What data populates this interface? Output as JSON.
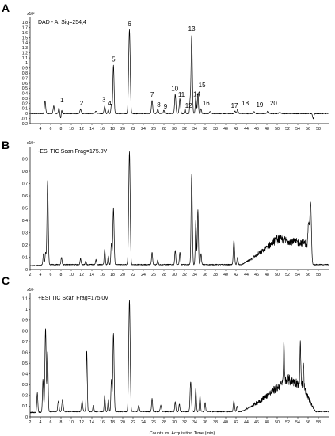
{
  "figure": {
    "xlabel": "Counts vs. Acquisition Time (min)"
  },
  "chart_data": [
    {
      "type": "line",
      "panel": "A",
      "title": "DAD - A:  Sig=254,4",
      "multiplier": "x10²",
      "xlim": [
        2,
        60
      ],
      "ylim": [
        -0.2,
        1.9
      ],
      "xticks": [
        4,
        6,
        8,
        10,
        12,
        14,
        16,
        18,
        20,
        22,
        24,
        26,
        28,
        30,
        32,
        34,
        36,
        38,
        40,
        42,
        44,
        46,
        48,
        50,
        52,
        54,
        56,
        58
      ],
      "yticks": [
        -0.2,
        -0.1,
        0,
        0.1,
        0.2,
        0.3,
        0.4,
        0.5,
        0.6,
        0.7,
        0.8,
        0.9,
        1,
        1.1,
        1.2,
        1.3,
        1.4,
        1.5,
        1.6,
        1.7,
        1.8
      ],
      "baseline": 0,
      "peaks": [
        {
          "t": 4.9,
          "h": 0.25,
          "w": 0.12
        },
        {
          "t": 6.6,
          "h": 0.15,
          "w": 0.12
        },
        {
          "t": 7.6,
          "h": 0.12,
          "w": 0.1
        },
        {
          "t": 8.1,
          "h": 0.14,
          "w": 0.1
        },
        {
          "t": 11.8,
          "h": 0.09,
          "w": 0.12
        },
        {
          "t": 14.8,
          "h": 0.05,
          "w": 0.15
        },
        {
          "t": 16.5,
          "h": 0.15,
          "w": 0.12
        },
        {
          "t": 17.2,
          "h": 0.08,
          "w": 0.1
        },
        {
          "t": 17.8,
          "h": 0.18,
          "w": 0.1
        },
        {
          "t": 18.2,
          "h": 0.96,
          "w": 0.12
        },
        {
          "t": 21.3,
          "h": 1.66,
          "w": 0.15
        },
        {
          "t": 25.7,
          "h": 0.26,
          "w": 0.12
        },
        {
          "t": 26.8,
          "h": 0.09,
          "w": 0.12
        },
        {
          "t": 28.0,
          "h": 0.06,
          "w": 0.12
        },
        {
          "t": 30.2,
          "h": 0.38,
          "w": 0.12
        },
        {
          "t": 31.1,
          "h": 0.3,
          "w": 0.12
        },
        {
          "t": 32.1,
          "h": 0.1,
          "w": 0.1
        },
        {
          "t": 33.1,
          "h": 0.25,
          "w": 0.1
        },
        {
          "t": 33.4,
          "h": 1.55,
          "w": 0.12
        },
        {
          "t": 34.2,
          "h": 0.36,
          "w": 0.1
        },
        {
          "t": 34.6,
          "h": 0.4,
          "w": 0.1
        },
        {
          "t": 35.2,
          "h": 0.1,
          "w": 0.1
        },
        {
          "t": 37.0,
          "h": 0.04,
          "w": 0.15
        },
        {
          "t": 41.8,
          "h": 0.05,
          "w": 0.12
        },
        {
          "t": 42.3,
          "h": 0.08,
          "w": 0.12
        },
        {
          "t": 45.5,
          "h": 0.04,
          "w": 0.15
        },
        {
          "t": 48.2,
          "h": 0.05,
          "w": 0.15
        },
        {
          "t": 50.5,
          "h": 0.02,
          "w": 0.2
        }
      ],
      "dips": [
        {
          "t": 8.0,
          "d": 0.14
        },
        {
          "t": 57.0,
          "d": 0.1
        }
      ],
      "noise": 0.008,
      "annotations": [
        {
          "label": "1",
          "x": 8.2,
          "y": 0.19
        },
        {
          "label": "2",
          "x": 12.0,
          "y": 0.13
        },
        {
          "label": "3",
          "x": 16.3,
          "y": 0.2
        },
        {
          "label": "4",
          "x": 17.5,
          "y": 0.13
        },
        {
          "label": "5",
          "x": 18.2,
          "y": 1.0
        },
        {
          "label": "6",
          "x": 21.3,
          "y": 1.7
        },
        {
          "label": "7",
          "x": 25.7,
          "y": 0.3
        },
        {
          "label": "8",
          "x": 27.0,
          "y": 0.1
        },
        {
          "label": "9",
          "x": 28.3,
          "y": 0.07
        },
        {
          "label": "10",
          "x": 30.1,
          "y": 0.42
        },
        {
          "label": "11",
          "x": 31.4,
          "y": 0.3
        },
        {
          "label": "12",
          "x": 32.8,
          "y": 0.08
        },
        {
          "label": "13",
          "x": 33.4,
          "y": 1.6
        },
        {
          "label": "14",
          "x": 34.4,
          "y": 0.31
        },
        {
          "label": "15",
          "x": 35.4,
          "y": 0.49
        },
        {
          "label": "16",
          "x": 36.2,
          "y": 0.13
        },
        {
          "label": "17",
          "x": 41.7,
          "y": 0.08
        },
        {
          "label": "18",
          "x": 43.8,
          "y": 0.13
        },
        {
          "label": "19",
          "x": 46.6,
          "y": 0.1
        },
        {
          "label": "20",
          "x": 49.3,
          "y": 0.13
        }
      ]
    },
    {
      "type": "line",
      "panel": "B",
      "title": "-ESI TIC Scan Frag=175.0V",
      "multiplier": "x10⁷",
      "xlim": [
        2,
        60
      ],
      "ylim": [
        0,
        1
      ],
      "xticks": [
        2,
        4,
        6,
        8,
        10,
        12,
        14,
        16,
        18,
        20,
        22,
        24,
        26,
        28,
        30,
        32,
        34,
        36,
        38,
        40,
        42,
        44,
        46,
        48,
        50,
        52,
        54,
        56,
        58
      ],
      "yticks": [
        0,
        0.1,
        0.2,
        0.3,
        0.4,
        0.5,
        0.6,
        0.7,
        0.8,
        0.9
      ],
      "baseline": 0.04,
      "peaks": [
        {
          "t": 4.6,
          "h": 0.09,
          "w": 0.1
        },
        {
          "t": 5.0,
          "h": 0.1,
          "w": 0.1
        },
        {
          "t": 5.4,
          "h": 0.68,
          "w": 0.12
        },
        {
          "t": 8.1,
          "h": 0.06,
          "w": 0.1
        },
        {
          "t": 11.8,
          "h": 0.05,
          "w": 0.1
        },
        {
          "t": 12.8,
          "h": 0.03,
          "w": 0.1
        },
        {
          "t": 14.8,
          "h": 0.04,
          "w": 0.1
        },
        {
          "t": 16.5,
          "h": 0.13,
          "w": 0.1
        },
        {
          "t": 17.2,
          "h": 0.07,
          "w": 0.1
        },
        {
          "t": 17.8,
          "h": 0.18,
          "w": 0.1
        },
        {
          "t": 18.2,
          "h": 0.46,
          "w": 0.12
        },
        {
          "t": 21.3,
          "h": 0.92,
          "w": 0.14
        },
        {
          "t": 25.7,
          "h": 0.1,
          "w": 0.1
        },
        {
          "t": 26.8,
          "h": 0.04,
          "w": 0.1
        },
        {
          "t": 30.2,
          "h": 0.12,
          "w": 0.1
        },
        {
          "t": 31.1,
          "h": 0.1,
          "w": 0.1
        },
        {
          "t": 33.4,
          "h": 0.74,
          "w": 0.12
        },
        {
          "t": 34.2,
          "h": 0.37,
          "w": 0.1
        },
        {
          "t": 34.6,
          "h": 0.45,
          "w": 0.1
        },
        {
          "t": 35.2,
          "h": 0.09,
          "w": 0.1
        },
        {
          "t": 41.6,
          "h": 0.2,
          "w": 0.12
        },
        {
          "t": 42.3,
          "h": 0.06,
          "w": 0.1
        },
        {
          "t": 56.1,
          "h": 0.25,
          "w": 0.15
        },
        {
          "t": 56.5,
          "h": 0.48,
          "w": 0.15
        }
      ],
      "hump": {
        "start": 43,
        "peak_t": 50,
        "end": 56.7,
        "peak_h": 0.21,
        "noise": 0.035,
        "plateau_end": 55.5
      },
      "noise": 0.004
    },
    {
      "type": "line",
      "panel": "C",
      "title": "+ESI TIC Scan Frag=175.0V",
      "multiplier": "x10⁷",
      "xlim": [
        2,
        60
      ],
      "ylim": [
        0,
        1.15
      ],
      "xticks": [
        2,
        4,
        6,
        8,
        10,
        12,
        14,
        16,
        18,
        20,
        22,
        24,
        26,
        28,
        30,
        32,
        34,
        36,
        38,
        40,
        42,
        44,
        46,
        48,
        50,
        52,
        54,
        56,
        58
      ],
      "yticks": [
        0,
        0.1,
        0.2,
        0.3,
        0.4,
        0.5,
        0.6,
        0.7,
        0.8,
        0.9,
        1,
        1.1
      ],
      "baseline": 0.05,
      "peaks": [
        {
          "t": 3.4,
          "h": 0.18,
          "w": 0.1
        },
        {
          "t": 4.5,
          "h": 0.3,
          "w": 0.1
        },
        {
          "t": 5.0,
          "h": 0.78,
          "w": 0.12
        },
        {
          "t": 5.4,
          "h": 0.55,
          "w": 0.1
        },
        {
          "t": 7.5,
          "h": 0.1,
          "w": 0.12
        },
        {
          "t": 8.3,
          "h": 0.12,
          "w": 0.12
        },
        {
          "t": 12.1,
          "h": 0.1,
          "w": 0.12
        },
        {
          "t": 13.0,
          "h": 0.57,
          "w": 0.1
        },
        {
          "t": 14.3,
          "h": 0.06,
          "w": 0.1
        },
        {
          "t": 16.5,
          "h": 0.15,
          "w": 0.1
        },
        {
          "t": 17.2,
          "h": 0.12,
          "w": 0.1
        },
        {
          "t": 17.8,
          "h": 0.3,
          "w": 0.1
        },
        {
          "t": 18.2,
          "h": 0.73,
          "w": 0.12
        },
        {
          "t": 21.3,
          "h": 1.04,
          "w": 0.14
        },
        {
          "t": 23.1,
          "h": 0.06,
          "w": 0.12
        },
        {
          "t": 25.7,
          "h": 0.12,
          "w": 0.1
        },
        {
          "t": 27.4,
          "h": 0.06,
          "w": 0.12
        },
        {
          "t": 30.2,
          "h": 0.09,
          "w": 0.1
        },
        {
          "t": 31.0,
          "h": 0.07,
          "w": 0.1
        },
        {
          "t": 33.2,
          "h": 0.28,
          "w": 0.12
        },
        {
          "t": 34.2,
          "h": 0.22,
          "w": 0.1
        },
        {
          "t": 35.0,
          "h": 0.15,
          "w": 0.1
        },
        {
          "t": 36.0,
          "h": 0.08,
          "w": 0.1
        },
        {
          "t": 41.6,
          "h": 0.1,
          "w": 0.12
        },
        {
          "t": 42.2,
          "h": 0.05,
          "w": 0.1
        },
        {
          "t": 51.3,
          "h": 0.4,
          "w": 0.08
        },
        {
          "t": 54.5,
          "h": 0.42,
          "w": 0.08
        },
        {
          "t": 55.1,
          "h": 0.2,
          "w": 0.08
        }
      ],
      "hump": {
        "start": 43,
        "peak_t": 52,
        "end": 57.5,
        "peak_h": 0.3,
        "noise": 0.05,
        "plateau_end": 55
      },
      "noise": 0.005
    }
  ]
}
